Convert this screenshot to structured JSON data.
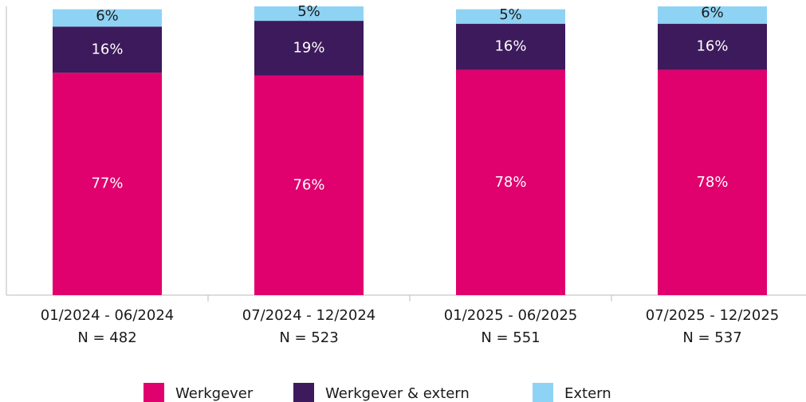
{
  "chart_data": {
    "type": "stacked_bar",
    "categories": [
      "01/2024 - 06/2024",
      "07/2024 - 12/2024",
      "01/2025 - 06/2025",
      "07/2025 - 12/2025"
    ],
    "category_counts": [
      "N = 482",
      "N = 523",
      "N = 551",
      "N = 537"
    ],
    "ylim": [
      0,
      100
    ],
    "series": [
      {
        "name": "Werkgever",
        "color": "#e0006e",
        "label_color": "#ffffff",
        "values": [
          77,
          76,
          78,
          78
        ],
        "value_labels": [
          "77%",
          "76%",
          "78%",
          "78%"
        ]
      },
      {
        "name": "Werkgever & extern",
        "color": "#3d1a5b",
        "label_color": "#ffffff",
        "values": [
          16,
          19,
          16,
          16
        ],
        "value_labels": [
          "16%",
          "19%",
          "16%",
          "16%"
        ]
      },
      {
        "name": "Extern",
        "color": "#8fd3f4",
        "label_color": "#1a1a1a",
        "values": [
          6,
          5,
          5,
          6
        ],
        "value_labels": [
          "6%",
          "5%",
          "5%",
          "6%"
        ]
      }
    ],
    "legend": "bottom"
  }
}
